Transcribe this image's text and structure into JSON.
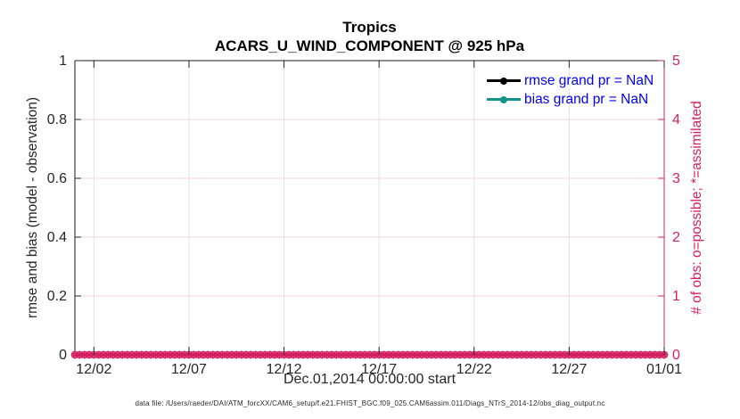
{
  "figure": {
    "background": "#ffffff",
    "footer": "data file: /Users/raeder/DAI/ATM_forcXX/CAM6_setup/f.e21.FHIST_BGC.f09_025.CAM6assim.011/Diags_NTrS_2014-12/obs_diag_output.nc"
  },
  "chart_data": {
    "type": "line",
    "title": "Tropics",
    "subtitle": "ACARS_U_WIND_COMPONENT @ 925 hPa",
    "xlabel": "Dec.01,2014 00:00:00 start",
    "axis_color": "#1a1a1a",
    "tick_label_color": "#262626",
    "x_axis": {
      "epoch_label": "Dec.01,2014 00:00:00",
      "lim_days": [
        0,
        31
      ],
      "tick_days": [
        1,
        6,
        11,
        16,
        21,
        26,
        31
      ],
      "tick_labels": [
        "12/02",
        "12/07",
        "12/12",
        "12/17",
        "12/22",
        "12/27",
        "01/01"
      ],
      "grid_color": "#e2e2e2"
    },
    "left_axis": {
      "label": "rmse and bias (model - observation)",
      "lim": [
        0,
        1
      ],
      "tick_values": [
        0,
        0.2,
        0.4,
        0.6,
        0.8,
        1
      ],
      "tick_labels": [
        "0",
        "0.2",
        "0.4",
        "0.6",
        "0.8",
        "1"
      ],
      "color": "#262626",
      "grid_color": "#f5d3df"
    },
    "right_axis": {
      "label": "# of obs: o=possible; *=assimilated",
      "lim": [
        0,
        5
      ],
      "tick_values": [
        0,
        1,
        2,
        3,
        4,
        5
      ],
      "tick_labels": [
        "0",
        "1",
        "2",
        "3",
        "4",
        "5"
      ],
      "color": "#d41f60"
    },
    "series": [
      {
        "name": "rmse",
        "legend_label": "rmse grand pr = NaN",
        "color": "#000000",
        "marker": "filled-circle",
        "grand_pr": "NaN",
        "values": []
      },
      {
        "name": "bias",
        "legend_label": "bias grand pr = NaN",
        "color": "#12948a",
        "marker": "filled-circle",
        "grand_pr": "NaN",
        "values": []
      }
    ],
    "legend": {
      "text_color": "#0000ee",
      "box": false,
      "position": "top-right"
    },
    "obs_counts": {
      "color": "#d41f60",
      "marker_possible": "o",
      "marker_assimilated": "*",
      "times_days": {
        "start": 0,
        "end": 31,
        "step": 0.25
      },
      "possible_count": 0,
      "assimilated_count": 0
    },
    "grid": true
  }
}
